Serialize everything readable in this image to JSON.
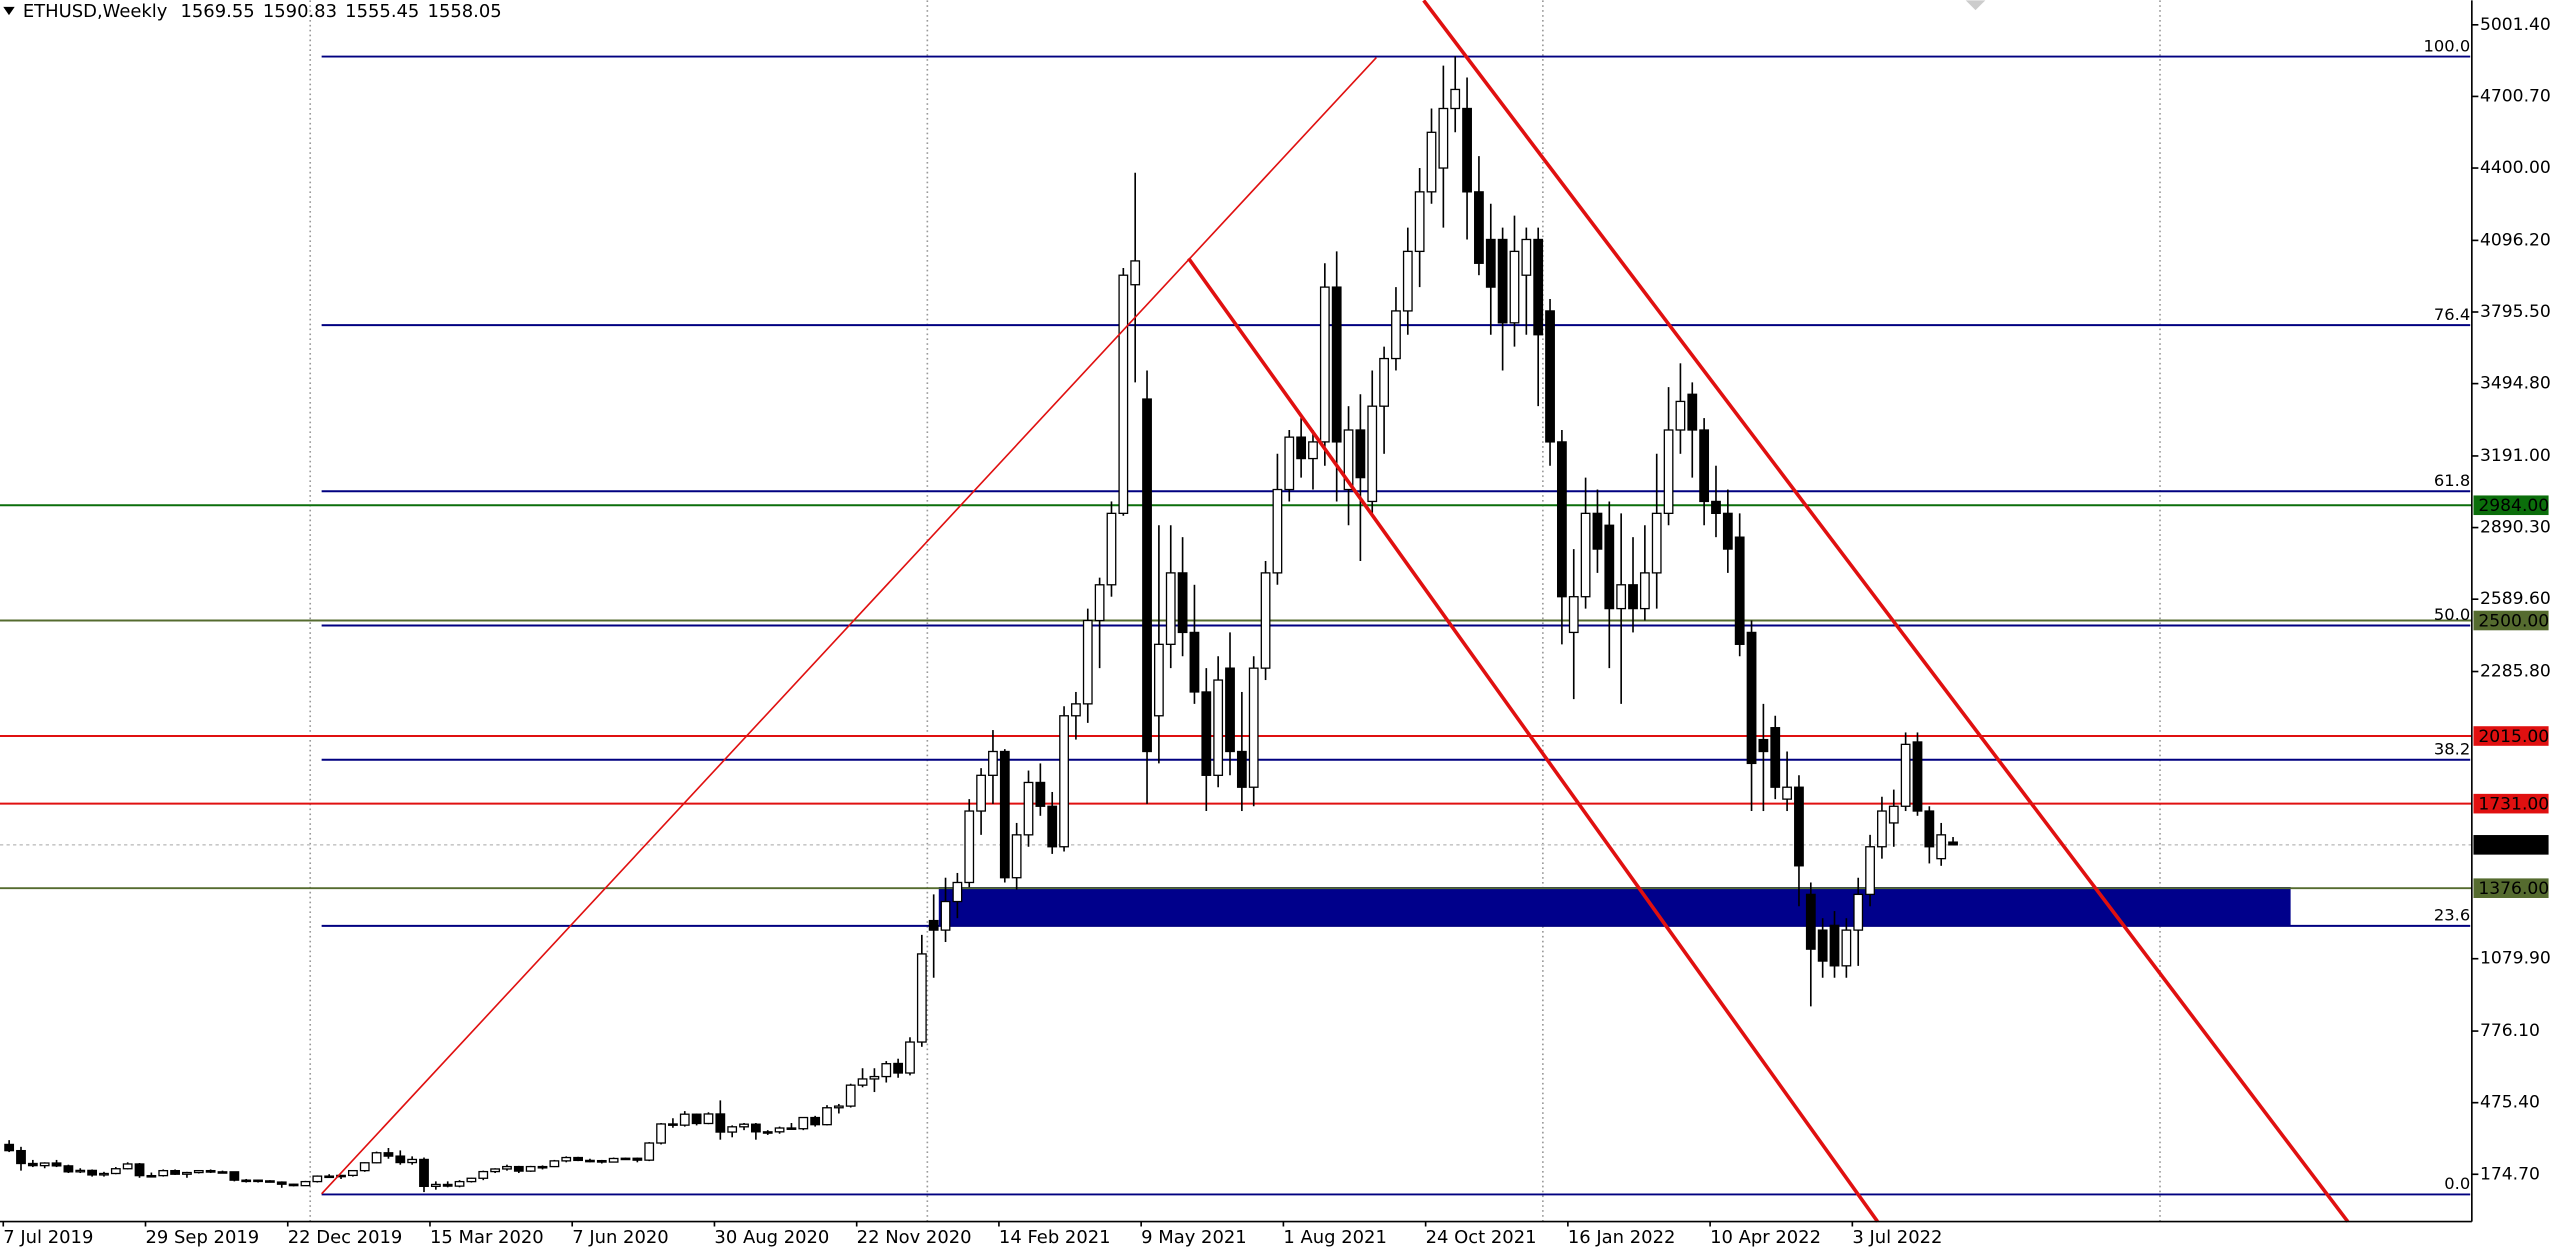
{
  "chart_data": {
    "type": "candlestick",
    "title": "ETHUSD,Weekly",
    "categories": [
      "7 Jul 2019",
      null,
      null,
      null,
      null,
      null,
      null,
      null,
      null,
      null,
      null,
      null,
      "29 Sep 2019",
      null,
      null,
      null,
      null,
      null,
      null,
      null,
      null,
      null,
      null,
      null,
      "22 Dec 2019",
      null,
      null,
      null,
      null,
      null,
      null,
      null,
      null,
      null,
      null,
      null,
      "15 Mar 2020",
      null,
      null,
      null,
      null,
      null,
      null,
      null,
      null,
      null,
      null,
      null,
      "7 Jun 2020",
      null,
      null,
      null,
      null,
      null,
      null,
      null,
      null,
      null,
      null,
      null,
      "30 Aug 2020",
      null,
      null,
      null,
      null,
      null,
      null,
      null,
      null,
      null,
      null,
      null,
      "22 Nov 2020",
      null,
      null,
      null,
      null,
      null,
      null,
      null,
      null,
      null,
      null,
      null,
      "14 Feb 2021",
      null,
      null,
      null,
      null,
      null,
      null,
      null,
      null,
      null,
      null,
      null,
      "9 May 2021",
      null,
      null,
      null,
      null,
      null,
      null,
      null,
      null,
      null,
      null,
      null,
      "1 Aug 2021",
      null,
      null,
      null,
      null,
      null,
      null,
      null,
      null,
      null,
      null,
      null,
      "24 Oct 2021",
      null,
      null,
      null,
      null,
      null,
      null,
      null,
      null,
      null,
      null,
      null,
      "16 Jan 2022",
      null,
      null,
      null,
      null,
      null,
      null,
      null,
      null,
      null,
      null,
      null,
      "10 Apr 2022",
      null,
      null,
      null,
      null,
      null,
      null,
      null,
      null,
      null,
      null,
      null,
      "3 Jul 2022",
      null,
      null,
      null,
      null,
      null,
      null,
      null,
      null
    ],
    "open": [
      300,
      274,
      220,
      211,
      222,
      210,
      185,
      191,
      172,
      178,
      198,
      218,
      169,
      169,
      190,
      175,
      182,
      190,
      184,
      185,
      150,
      150,
      147,
      142,
      133,
      127,
      144,
      167,
      166,
      170,
      190,
      223,
      265,
      251,
      224,
      237,
      124,
      132,
      125,
      144,
      158,
      186,
      197,
      207,
      188,
      207,
      207,
      231,
      245,
      233,
      232,
      226,
      241,
      242,
      234,
      306,
      386,
      381,
      427,
      388,
      428,
      352,
      374,
      385,
      353,
      353,
      369,
      366,
      413,
      383,
      454,
      461,
      549,
      575,
      585,
      640,
      600,
      730,
      1240,
      1200,
      1320,
      1400,
      1700,
      1850,
      1950,
      1420,
      1600,
      1820,
      1720,
      1550,
      2100,
      2150,
      2500,
      2650,
      2950,
      3910,
      3430,
      2100,
      2400,
      2700,
      2450,
      2200,
      1850,
      2300,
      1950,
      1800,
      2300,
      2700,
      3050,
      3270,
      3180,
      3250,
      3900,
      3050,
      3300,
      3000,
      3400,
      3600,
      3800,
      4050,
      4300,
      4400,
      4650,
      4650,
      4300,
      4100,
      4100,
      3750,
      3950,
      4100,
      3800,
      3250,
      2450,
      2600,
      2950,
      2900,
      2550,
      2650,
      2550,
      2700,
      2950,
      3300,
      3450,
      3300,
      3000,
      2950,
      2850,
      2450,
      2000,
      2050,
      1750,
      1800,
      1350,
      1200,
      1220,
      1050,
      1200,
      1350,
      1550,
      1650,
      1720,
      1990,
      1700,
      1500,
      1569.55
    ],
    "high": [
      318,
      290,
      235,
      225,
      235,
      215,
      200,
      195,
      185,
      205,
      225,
      222,
      182,
      195,
      195,
      185,
      192,
      195,
      190,
      186,
      155,
      152,
      150,
      145,
      135,
      147,
      170,
      175,
      172,
      192,
      225,
      270,
      285,
      275,
      250,
      245,
      145,
      145,
      150,
      160,
      190,
      200,
      215,
      210,
      210,
      212,
      235,
      250,
      248,
      240,
      235,
      245,
      245,
      245,
      310,
      390,
      410,
      440,
      430,
      435,
      485,
      380,
      390,
      390,
      360,
      375,
      390,
      415,
      420,
      465,
      470,
      555,
      620,
      620,
      650,
      660,
      750,
      1180,
      1350,
      1420,
      1440,
      1750,
      1880,
      2040,
      1960,
      1650,
      1870,
      1900,
      1780,
      2140,
      2200,
      2550,
      2680,
      3000,
      3980,
      4380,
      3550,
      2900,
      2900,
      2850,
      2650,
      2300,
      2350,
      2450,
      2200,
      2350,
      2750,
      3200,
      3300,
      3350,
      3300,
      4000,
      4050,
      3400,
      3450,
      3550,
      3650,
      3900,
      4150,
      4400,
      4650,
      4830,
      4870,
      4780,
      4450,
      4250,
      4150,
      4200,
      4150,
      4150,
      3850,
      3300,
      2800,
      3100,
      3050,
      3000,
      2950,
      2850,
      2900,
      3200,
      3480,
      3580,
      3500,
      3350,
      3150,
      3050,
      2950,
      2500,
      2150,
      2100,
      1950,
      1850,
      1400,
      1250,
      1280,
      1250,
      1420,
      1600,
      1760,
      1790,
      2030,
      2030,
      1720,
      1650,
      1590.83
    ],
    "low": [
      268,
      190,
      205,
      200,
      205,
      180,
      180,
      165,
      165,
      175,
      195,
      160,
      163,
      165,
      172,
      160,
      178,
      180,
      180,
      145,
      140,
      140,
      140,
      118,
      124,
      126,
      140,
      160,
      155,
      165,
      185,
      220,
      240,
      215,
      215,
      100,
      110,
      120,
      120,
      140,
      150,
      180,
      190,
      180,
      185,
      195,
      205,
      225,
      230,
      225,
      220,
      225,
      235,
      225,
      230,
      300,
      370,
      375,
      380,
      385,
      320,
      330,
      360,
      320,
      340,
      345,
      365,
      360,
      375,
      380,
      430,
      455,
      540,
      520,
      560,
      580,
      590,
      710,
      1000,
      1150,
      1250,
      1380,
      1600,
      1730,
      1400,
      1370,
      1550,
      1680,
      1520,
      1530,
      2000,
      2070,
      2300,
      2600,
      2940,
      3500,
      1730,
      1900,
      2300,
      2350,
      2150,
      1700,
      1800,
      1850,
      1700,
      1720,
      2250,
      2650,
      3000,
      3100,
      3050,
      3150,
      3000,
      2900,
      2750,
      2950,
      3200,
      3550,
      3700,
      3900,
      4250,
      4150,
      4550,
      4100,
      3950,
      3700,
      3550,
      3650,
      3700,
      3400,
      3150,
      2400,
      2170,
      2550,
      2700,
      2300,
      2150,
      2450,
      2500,
      2550,
      2900,
      3200,
      3100,
      2900,
      2850,
      2700,
      2350,
      1700,
      1700,
      1750,
      1700,
      1300,
      880,
      1000,
      1000,
      1000,
      1050,
      1300,
      1500,
      1550,
      1700,
      1680,
      1480,
      1470,
      1555.45
    ],
    "close": [
      274,
      220,
      211,
      222,
      210,
      185,
      191,
      172,
      178,
      198,
      218,
      169,
      169,
      190,
      175,
      182,
      190,
      184,
      185,
      150,
      150,
      147,
      142,
      133,
      127,
      144,
      167,
      166,
      170,
      190,
      223,
      265,
      251,
      224,
      237,
      124,
      132,
      125,
      144,
      158,
      186,
      197,
      207,
      188,
      207,
      207,
      231,
      245,
      233,
      232,
      226,
      241,
      242,
      234,
      306,
      386,
      381,
      427,
      388,
      428,
      352,
      374,
      385,
      353,
      353,
      369,
      366,
      413,
      383,
      454,
      461,
      549,
      575,
      585,
      639,
      600,
      730,
      1100,
      1200,
      1320,
      1400,
      1700,
      1850,
      1950,
      1420,
      1600,
      1820,
      1720,
      1550,
      2100,
      2150,
      2500,
      2650,
      2950,
      3950,
      4010,
      1950,
      2400,
      2700,
      2450,
      2200,
      1850,
      2250,
      1950,
      1800,
      2300,
      2700,
      3050,
      3270,
      3180,
      3250,
      3900,
      3250,
      3300,
      3100,
      3400,
      3600,
      3800,
      4050,
      4300,
      4550,
      4650,
      4730,
      4300,
      4000,
      3900,
      3750,
      4050,
      4100,
      3700,
      3250,
      2600,
      2600,
      2950,
      2800,
      2550,
      2650,
      2550,
      2700,
      2950,
      3300,
      3420,
      3300,
      3000,
      2950,
      2800,
      2400,
      1900,
      1950,
      1800,
      1800,
      1470,
      1120,
      1070,
      1050,
      1200,
      1350,
      1550,
      1700,
      1720,
      1980,
      1700,
      1550,
      1600,
      1558.05
    ],
    "up_color": "#ffffff",
    "down_color": "#000000",
    "ylim": [
      -24,
      5104
    ],
    "yticks": [
      {
        "value": 5001.4,
        "label": "5001.40"
      },
      {
        "value": 4700.7,
        "label": "4700.70"
      },
      {
        "value": 4400,
        "label": "4400.00"
      },
      {
        "value": 4096.2,
        "label": "4096.20"
      },
      {
        "value": 3795.5,
        "label": "3795.50"
      },
      {
        "value": 3494.8,
        "label": "3494.80"
      },
      {
        "value": 3191,
        "label": "3191.00"
      },
      {
        "value": 2890.3,
        "label": "2890.30"
      },
      {
        "value": 2589.6,
        "label": "2589.60"
      },
      {
        "value": 2285.8,
        "label": "2285.80"
      },
      {
        "value": 1079.9,
        "label": "1079.90"
      },
      {
        "value": 776.1,
        "label": "776.10"
      },
      {
        "value": 475.4,
        "label": "475.40"
      },
      {
        "value": 174.7,
        "label": "174.70"
      }
    ],
    "hlines": [
      {
        "value": 2984,
        "label": "2984.00",
        "color": "#0b6e0b"
      },
      {
        "value": 2500,
        "label": "2500.00",
        "color": "#556b2f"
      },
      {
        "value": 2015,
        "label": "2015.00",
        "color": "#e01010"
      },
      {
        "value": 1731,
        "label": "1731.00",
        "color": "#e01010"
      },
      {
        "value": 1376,
        "label": "1376.00",
        "color": "#556b2f"
      }
    ],
    "fibo": {
      "low": 90,
      "high": 4868,
      "color": "#000080",
      "levels": [
        {
          "value": 100,
          "label": "100.0"
        },
        76.4,
        61.8,
        {
          "value": 50,
          "label": "50.0"
        },
        38.2,
        23.6,
        {
          "value": 0,
          "label": "0.0"
        }
      ]
    },
    "zone": [
      1217,
      1381
    ],
    "zone_color": "#00008b"
  }
}
